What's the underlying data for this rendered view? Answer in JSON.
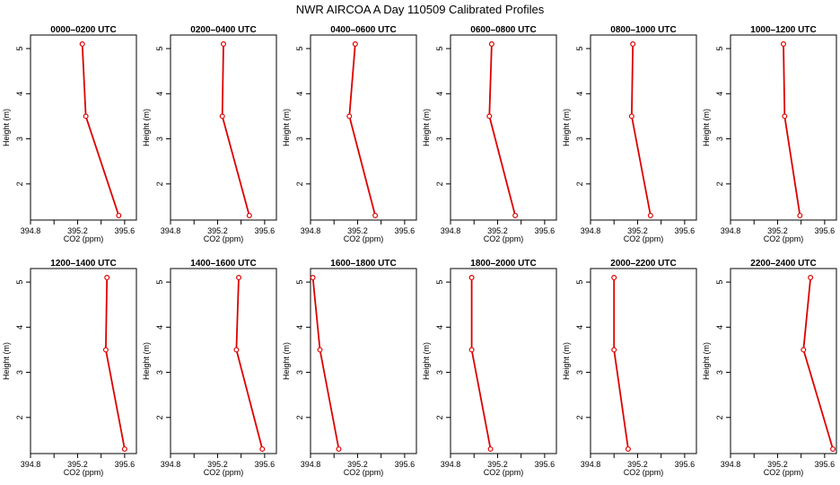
{
  "title": "NWR AIRCOA A  Day 110509  Calibrated Profiles",
  "colors": {
    "series": "#dd0000",
    "axis": "#000000",
    "background": "#ffffff"
  },
  "chart_data": [
    {
      "type": "line",
      "title": "0000–0200 UTC",
      "xlabel": "CO2 (ppm)",
      "ylabel": "Height (m)",
      "xlim": [
        394.8,
        395.7
      ],
      "ylim": [
        1.2,
        5.3
      ],
      "x_ticks": [
        "394.8",
        "395.2",
        "395.6"
      ],
      "y_ticks": [
        "2",
        "3",
        "4",
        "5"
      ],
      "grid": false,
      "x": [
        395.24,
        395.27,
        395.55
      ],
      "y": [
        5.1,
        3.5,
        1.3
      ]
    },
    {
      "type": "line",
      "title": "0200–0400 UTC",
      "xlabel": "CO2 (ppm)",
      "ylabel": "Height (m)",
      "xlim": [
        394.8,
        395.7
      ],
      "ylim": [
        1.2,
        5.3
      ],
      "x_ticks": [
        "394.8",
        "395.2",
        "395.6"
      ],
      "y_ticks": [
        "2",
        "3",
        "4",
        "5"
      ],
      "grid": false,
      "x": [
        395.25,
        395.24,
        395.47
      ],
      "y": [
        5.1,
        3.5,
        1.3
      ]
    },
    {
      "type": "line",
      "title": "0400–0600 UTC",
      "xlabel": "CO2 (ppm)",
      "ylabel": "Height (m)",
      "xlim": [
        394.8,
        395.7
      ],
      "ylim": [
        1.2,
        5.3
      ],
      "x_ticks": [
        "394.8",
        "395.2",
        "395.6"
      ],
      "y_ticks": [
        "2",
        "3",
        "4",
        "5"
      ],
      "grid": false,
      "x": [
        395.18,
        395.13,
        395.35
      ],
      "y": [
        5.1,
        3.5,
        1.3
      ]
    },
    {
      "type": "line",
      "title": "0600–0800 UTC",
      "xlabel": "CO2 (ppm)",
      "ylabel": "Height (m)",
      "xlim": [
        394.8,
        395.7
      ],
      "ylim": [
        1.2,
        5.3
      ],
      "x_ticks": [
        "394.8",
        "395.2",
        "395.6"
      ],
      "y_ticks": [
        "2",
        "3",
        "4",
        "5"
      ],
      "grid": false,
      "x": [
        395.15,
        395.13,
        395.35
      ],
      "y": [
        5.1,
        3.5,
        1.3
      ]
    },
    {
      "type": "line",
      "title": "0800–1000 UTC",
      "xlabel": "CO2 (ppm)",
      "ylabel": "Height (m)",
      "xlim": [
        394.8,
        395.7
      ],
      "ylim": [
        1.2,
        5.3
      ],
      "x_ticks": [
        "394.8",
        "395.2",
        "395.6"
      ],
      "y_ticks": [
        "2",
        "3",
        "4",
        "5"
      ],
      "grid": false,
      "x": [
        395.16,
        395.15,
        395.31
      ],
      "y": [
        5.1,
        3.5,
        1.3
      ]
    },
    {
      "type": "line",
      "title": "1000–1200 UTC",
      "xlabel": "CO2 (ppm)",
      "ylabel": "Height (m)",
      "xlim": [
        394.8,
        395.7
      ],
      "ylim": [
        1.2,
        5.3
      ],
      "x_ticks": [
        "394.8",
        "395.2",
        "395.6"
      ],
      "y_ticks": [
        "2",
        "3",
        "4",
        "5"
      ],
      "grid": false,
      "x": [
        395.25,
        395.26,
        395.39
      ],
      "y": [
        5.1,
        3.5,
        1.3
      ]
    },
    {
      "type": "line",
      "title": "1200–1400 UTC",
      "xlabel": "CO2 (ppm)",
      "ylabel": "Height (m)",
      "xlim": [
        394.8,
        395.7
      ],
      "ylim": [
        1.2,
        5.3
      ],
      "x_ticks": [
        "394.8",
        "395.2",
        "395.6"
      ],
      "y_ticks": [
        "2",
        "3",
        "4",
        "5"
      ],
      "grid": false,
      "x": [
        395.45,
        395.44,
        395.6
      ],
      "y": [
        5.1,
        3.5,
        1.3
      ]
    },
    {
      "type": "line",
      "title": "1400–1600 UTC",
      "xlabel": "CO2 (ppm)",
      "ylabel": "Height (m)",
      "xlim": [
        394.8,
        395.7
      ],
      "ylim": [
        1.2,
        5.3
      ],
      "x_ticks": [
        "394.8",
        "395.2",
        "395.6"
      ],
      "y_ticks": [
        "2",
        "3",
        "4",
        "5"
      ],
      "grid": false,
      "x": [
        395.38,
        395.36,
        395.58
      ],
      "y": [
        5.1,
        3.5,
        1.3
      ]
    },
    {
      "type": "line",
      "title": "1600–1800 UTC",
      "xlabel": "CO2 (ppm)",
      "ylabel": "Height (m)",
      "xlim": [
        394.8,
        395.7
      ],
      "ylim": [
        1.2,
        5.3
      ],
      "x_ticks": [
        "394.8",
        "395.2",
        "395.6"
      ],
      "y_ticks": [
        "2",
        "3",
        "4",
        "5"
      ],
      "grid": false,
      "x": [
        394.82,
        394.88,
        395.04
      ],
      "y": [
        5.1,
        3.5,
        1.3
      ]
    },
    {
      "type": "line",
      "title": "1800–2000 UTC",
      "xlabel": "CO2 (ppm)",
      "ylabel": "Height (m)",
      "xlim": [
        394.8,
        395.7
      ],
      "ylim": [
        1.2,
        5.3
      ],
      "x_ticks": [
        "394.8",
        "395.2",
        "395.6"
      ],
      "y_ticks": [
        "2",
        "3",
        "4",
        "5"
      ],
      "grid": false,
      "x": [
        394.98,
        394.98,
        395.14
      ],
      "y": [
        5.1,
        3.5,
        1.3
      ]
    },
    {
      "type": "line",
      "title": "2000–2200 UTC",
      "xlabel": "CO2 (ppm)",
      "ylabel": "Height (m)",
      "xlim": [
        394.8,
        395.7
      ],
      "ylim": [
        1.2,
        5.3
      ],
      "x_ticks": [
        "394.8",
        "395.2",
        "395.6"
      ],
      "y_ticks": [
        "2",
        "3",
        "4",
        "5"
      ],
      "grid": false,
      "x": [
        395.0,
        395.0,
        395.12
      ],
      "y": [
        5.1,
        3.5,
        1.3
      ]
    },
    {
      "type": "line",
      "title": "2200–2400 UTC",
      "xlabel": "CO2 (ppm)",
      "ylabel": "Height (m)",
      "xlim": [
        394.8,
        395.7
      ],
      "ylim": [
        1.2,
        5.3
      ],
      "x_ticks": [
        "394.8",
        "395.2",
        "395.6"
      ],
      "y_ticks": [
        "2",
        "3",
        "4",
        "5"
      ],
      "grid": false,
      "x": [
        395.48,
        395.42,
        395.67
      ],
      "y": [
        5.1,
        3.5,
        1.3
      ]
    }
  ]
}
